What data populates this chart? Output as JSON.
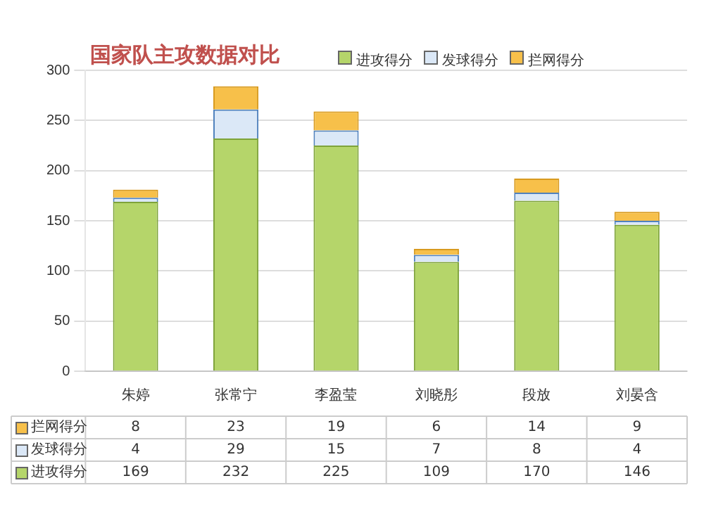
{
  "chart_data": {
    "type": "bar",
    "title": "国家队主攻数据对比",
    "stacked": true,
    "categories": [
      "朱婷",
      "张常宁",
      "李盈莹",
      "刘晓彤",
      "段放",
      "刘晏含"
    ],
    "series": [
      {
        "name": "进攻得分",
        "color": "#b5d56a",
        "values": [
          169,
          232,
          225,
          109,
          170,
          146
        ]
      },
      {
        "name": "发球得分",
        "color": "#dbe8f7",
        "values": [
          4,
          29,
          15,
          7,
          8,
          4
        ]
      },
      {
        "name": "拦网得分",
        "color": "#f7c04a",
        "values": [
          8,
          23,
          19,
          6,
          14,
          9
        ]
      }
    ],
    "ylim": [
      0,
      300
    ],
    "yticks": [
      0,
      50,
      100,
      150,
      200,
      250,
      300
    ],
    "grid": "y",
    "legend": "top",
    "data_labels": true
  }
}
